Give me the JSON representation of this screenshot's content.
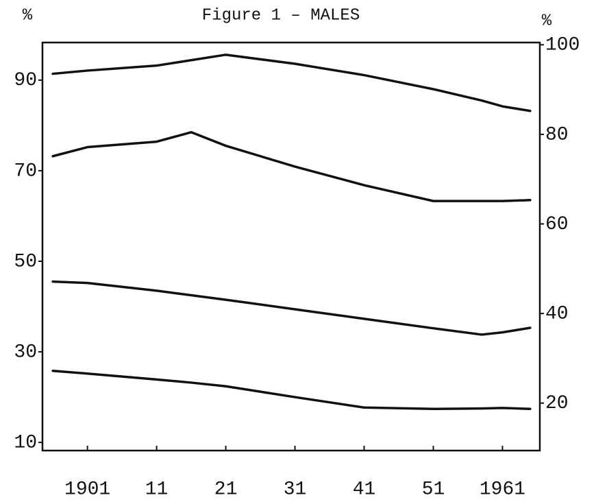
{
  "chart_data": {
    "type": "line",
    "title": "Figure 1 – MALES",
    "y_label": "%",
    "y2_label": "%",
    "x": [
      1896,
      1901,
      1911,
      1916,
      1921,
      1931,
      1941,
      1951,
      1958,
      1961,
      1965
    ],
    "xlim": [
      1894.5,
      1966.4
    ],
    "xticks": [
      {
        "value": 1901,
        "label": "1901"
      },
      {
        "value": 1911,
        "label": "11"
      },
      {
        "value": 1921,
        "label": "21"
      },
      {
        "value": 1931,
        "label": "31"
      },
      {
        "value": 1941,
        "label": "41"
      },
      {
        "value": 1951,
        "label": "51"
      },
      {
        "value": 1961,
        "label": "1961"
      }
    ],
    "ylim": [
      8.2,
      98.3
    ],
    "yticks": [
      10,
      30,
      50,
      70,
      90
    ],
    "y2lim": [
      9.4,
      100.5
    ],
    "y2ticks": [
      20,
      40,
      60,
      80,
      100
    ],
    "series": [
      {
        "color": "#111111",
        "values": [
          91.4,
          92.1,
          93.2,
          94.4,
          95.6,
          93.6,
          91.1,
          88.0,
          85.5,
          84.2,
          83.2
        ]
      },
      {
        "color": "#111111",
        "values": [
          73.2,
          75.2,
          76.4,
          78.5,
          75.5,
          70.9,
          66.8,
          63.3,
          63.3,
          63.3,
          63.5
        ]
      },
      {
        "color": "#111111",
        "values": [
          45.5,
          45.2,
          43.5,
          42.5,
          41.5,
          39.4,
          37.3,
          35.2,
          33.8,
          34.3,
          35.3
        ]
      },
      {
        "color": "#111111",
        "values": [
          25.8,
          25.2,
          23.9,
          23.2,
          22.4,
          20.0,
          17.7,
          17.4,
          17.5,
          17.6,
          17.4
        ]
      }
    ]
  }
}
